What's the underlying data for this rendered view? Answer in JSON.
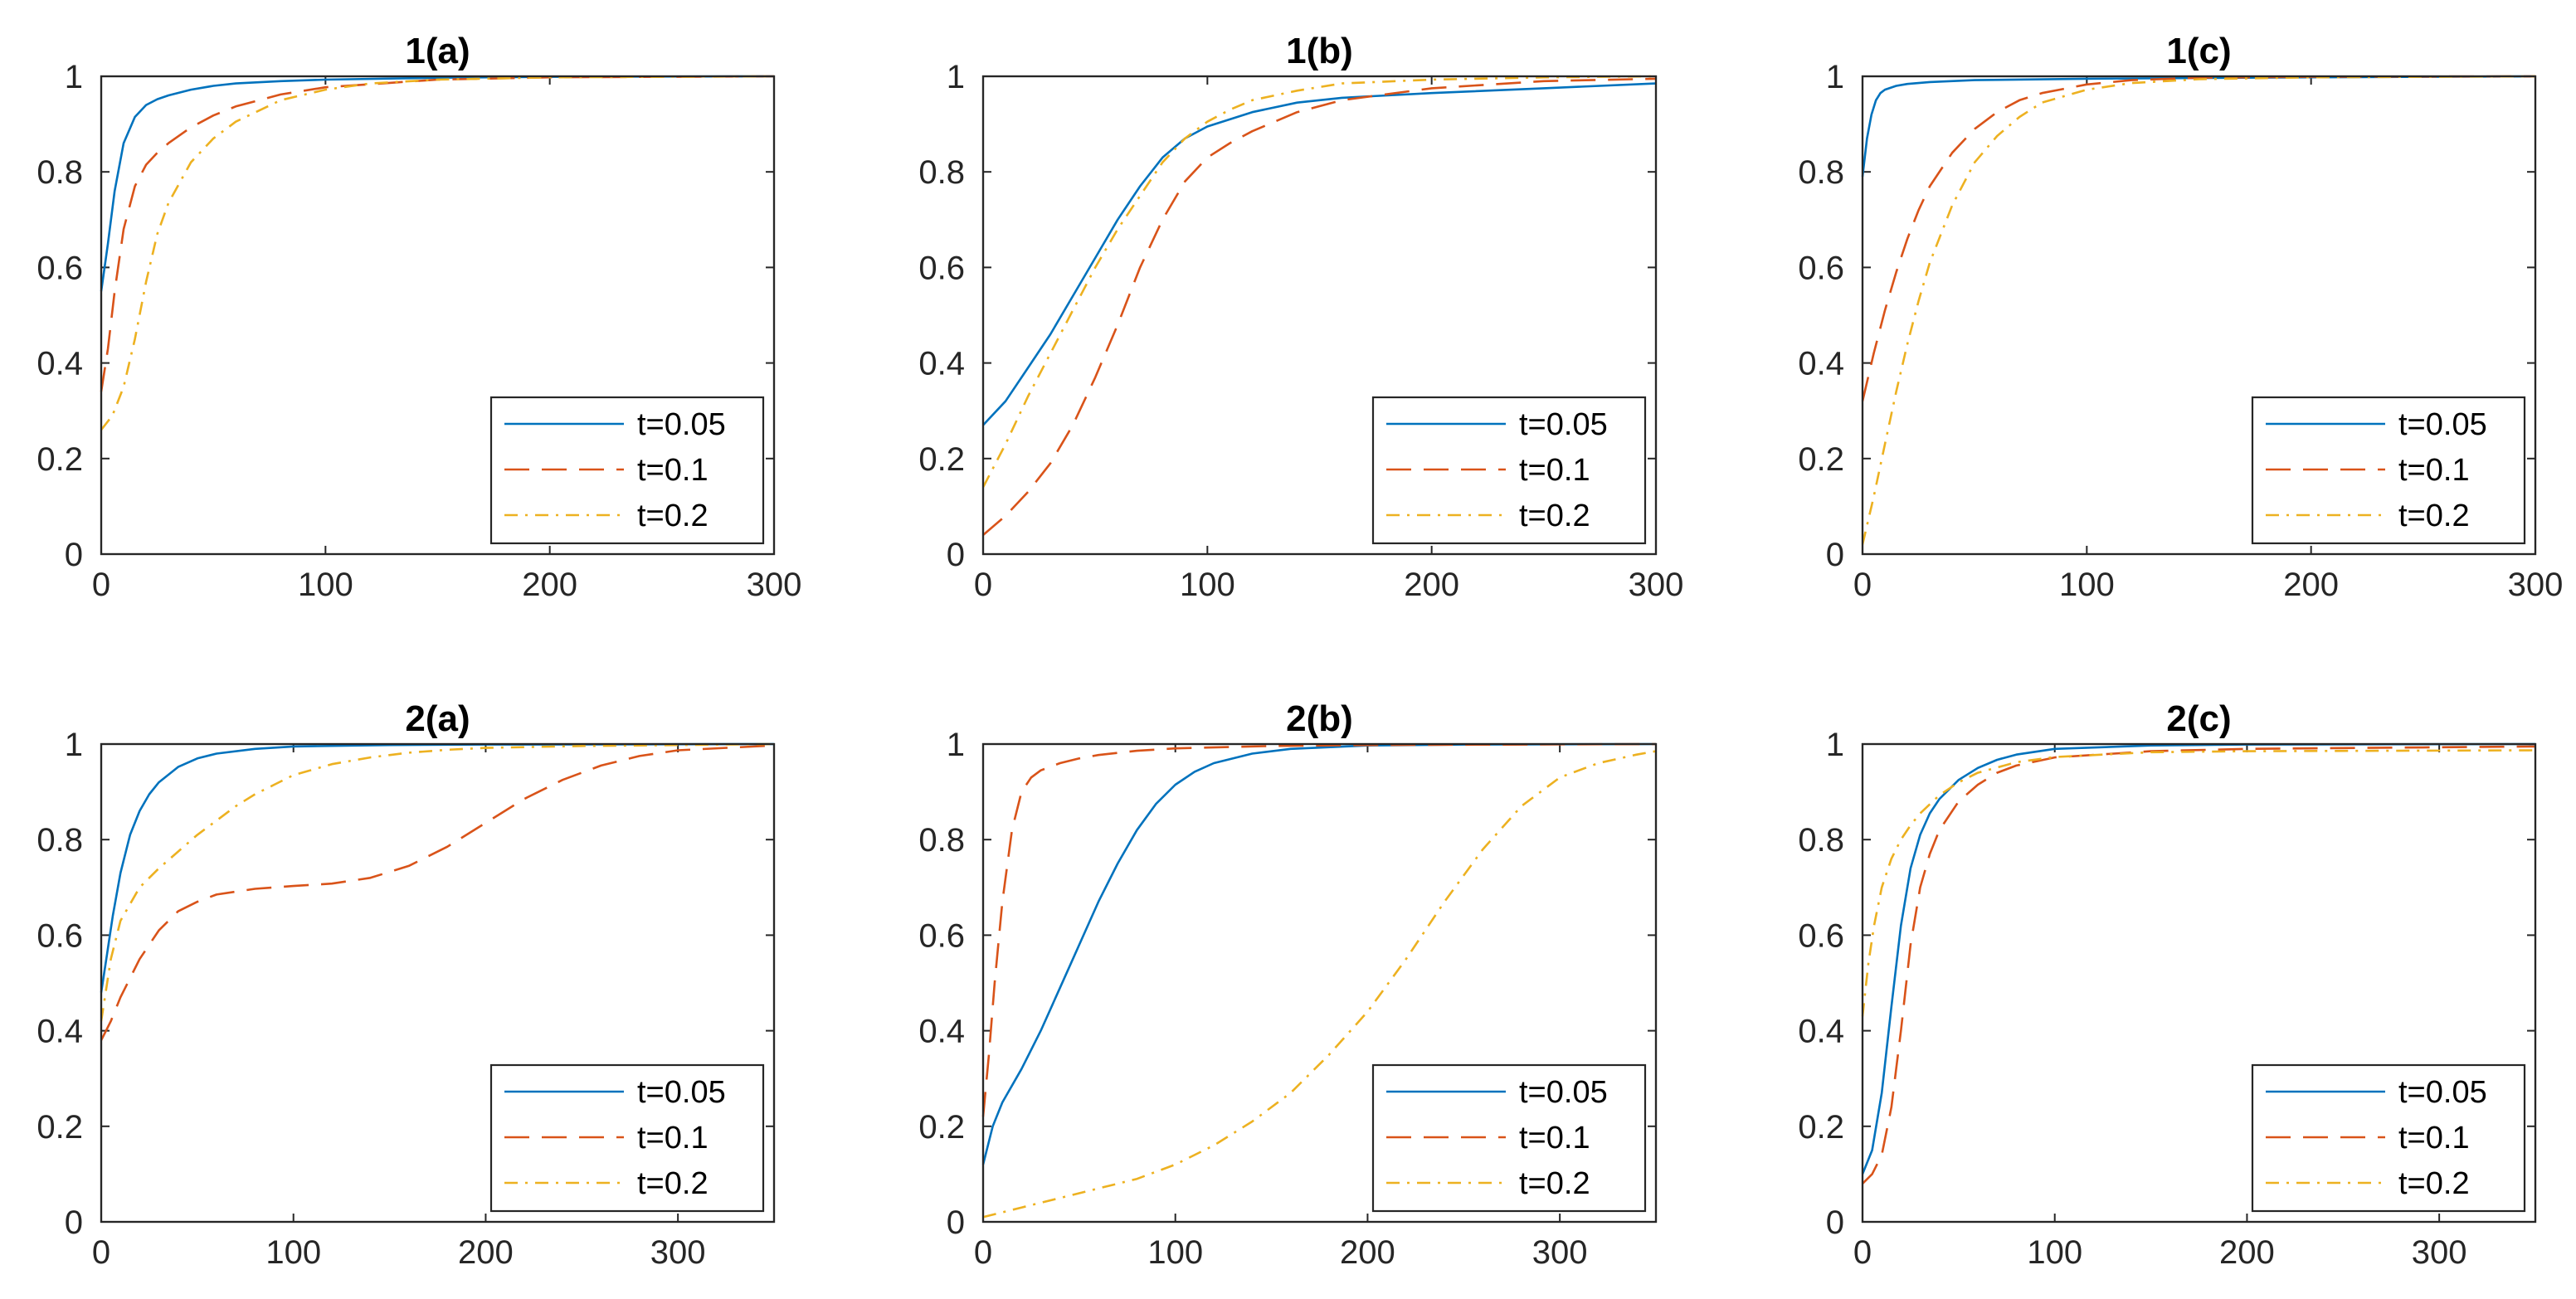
{
  "chart_data": [
    {
      "type": "line",
      "title": "1(a)",
      "xlabel": "",
      "ylabel": "",
      "xlim": [
        0,
        300
      ],
      "ylim": [
        0,
        1
      ],
      "xticks": [
        0,
        100,
        200,
        300
      ],
      "yticks": [
        0,
        0.2,
        0.4,
        0.6,
        0.8,
        1
      ],
      "xtick_labels": [
        "0",
        "100",
        "200",
        "300"
      ],
      "ytick_labels": [
        "0",
        "0.2",
        "0.4",
        "0.6",
        "0.8",
        "1"
      ],
      "grid": false,
      "legend": "bottom-right",
      "series": [
        {
          "name": "t=0.05",
          "color": "#0072BD",
          "dash": "solid",
          "x": [
            0,
            3,
            6,
            10,
            15,
            20,
            25,
            30,
            40,
            50,
            60,
            80,
            100,
            150,
            200,
            300
          ],
          "y": [
            0.55,
            0.65,
            0.76,
            0.86,
            0.915,
            0.94,
            0.952,
            0.96,
            0.972,
            0.98,
            0.985,
            0.99,
            0.993,
            0.997,
            0.999,
            1.0
          ]
        },
        {
          "name": "t=0.1",
          "color": "#D95319",
          "dash": "dashed",
          "x": [
            0,
            3,
            6,
            10,
            15,
            20,
            25,
            30,
            40,
            50,
            60,
            80,
            100,
            150,
            200,
            300
          ],
          "y": [
            0.34,
            0.43,
            0.55,
            0.68,
            0.77,
            0.815,
            0.84,
            0.86,
            0.893,
            0.918,
            0.937,
            0.962,
            0.977,
            0.993,
            0.998,
            1.0
          ]
        },
        {
          "name": "t=0.2",
          "color": "#EDB120",
          "dash": "dashdot",
          "x": [
            0,
            5,
            10,
            15,
            20,
            25,
            30,
            40,
            50,
            60,
            80,
            100,
            120,
            150,
            200,
            300
          ],
          "y": [
            0.26,
            0.29,
            0.35,
            0.45,
            0.57,
            0.67,
            0.735,
            0.82,
            0.87,
            0.905,
            0.95,
            0.972,
            0.985,
            0.993,
            0.998,
            1.0
          ]
        }
      ]
    },
    {
      "type": "line",
      "title": "1(b)",
      "xlabel": "",
      "ylabel": "",
      "xlim": [
        0,
        300
      ],
      "ylim": [
        0,
        1
      ],
      "xticks": [
        0,
        100,
        200,
        300
      ],
      "yticks": [
        0,
        0.2,
        0.4,
        0.6,
        0.8,
        1
      ],
      "xtick_labels": [
        "0",
        "100",
        "200",
        "300"
      ],
      "ytick_labels": [
        "0",
        "0.2",
        "0.4",
        "0.6",
        "0.8",
        "1"
      ],
      "grid": false,
      "legend": "bottom-right",
      "series": [
        {
          "name": "t=0.05",
          "color": "#0072BD",
          "dash": "solid",
          "x": [
            0,
            10,
            20,
            30,
            40,
            50,
            60,
            70,
            80,
            90,
            100,
            120,
            140,
            160,
            200,
            250,
            300
          ],
          "y": [
            0.27,
            0.32,
            0.39,
            0.46,
            0.54,
            0.62,
            0.7,
            0.77,
            0.83,
            0.87,
            0.895,
            0.925,
            0.945,
            0.955,
            0.965,
            0.975,
            0.985
          ]
        },
        {
          "name": "t=0.1",
          "color": "#D95319",
          "dash": "dashed",
          "x": [
            0,
            10,
            20,
            30,
            40,
            50,
            60,
            70,
            80,
            90,
            100,
            110,
            120,
            140,
            160,
            200,
            250,
            300
          ],
          "y": [
            0.04,
            0.08,
            0.13,
            0.19,
            0.27,
            0.37,
            0.48,
            0.6,
            0.7,
            0.78,
            0.83,
            0.86,
            0.885,
            0.925,
            0.95,
            0.975,
            0.99,
            0.995
          ]
        },
        {
          "name": "t=0.2",
          "color": "#EDB120",
          "dash": "dashdot",
          "x": [
            0,
            10,
            20,
            30,
            40,
            50,
            60,
            70,
            80,
            90,
            100,
            110,
            120,
            140,
            160,
            200,
            250,
            300
          ],
          "y": [
            0.14,
            0.23,
            0.33,
            0.42,
            0.51,
            0.6,
            0.68,
            0.75,
            0.82,
            0.87,
            0.905,
            0.93,
            0.95,
            0.97,
            0.985,
            0.993,
            0.998,
            1.0
          ]
        }
      ]
    },
    {
      "type": "line",
      "title": "1(c)",
      "xlabel": "",
      "ylabel": "",
      "xlim": [
        0,
        300
      ],
      "ylim": [
        0,
        1
      ],
      "xticks": [
        0,
        100,
        200,
        300
      ],
      "yticks": [
        0,
        0.2,
        0.4,
        0.6,
        0.8,
        1
      ],
      "xtick_labels": [
        "0",
        "100",
        "200",
        "300"
      ],
      "ytick_labels": [
        "0",
        "0.2",
        "0.4",
        "0.6",
        "0.8",
        "1"
      ],
      "grid": false,
      "legend": "bottom-right",
      "series": [
        {
          "name": "t=0.05",
          "color": "#0072BD",
          "dash": "solid",
          "x": [
            0,
            2,
            4,
            6,
            8,
            10,
            15,
            20,
            30,
            50,
            100,
            200,
            300
          ],
          "y": [
            0.79,
            0.87,
            0.92,
            0.95,
            0.965,
            0.972,
            0.98,
            0.984,
            0.988,
            0.992,
            0.995,
            0.998,
            1.0
          ]
        },
        {
          "name": "t=0.1",
          "color": "#D95319",
          "dash": "dashed",
          "x": [
            0,
            5,
            10,
            15,
            20,
            25,
            30,
            40,
            50,
            60,
            70,
            80,
            100,
            120,
            150,
            200,
            300
          ],
          "y": [
            0.32,
            0.42,
            0.51,
            0.59,
            0.66,
            0.72,
            0.77,
            0.84,
            0.89,
            0.925,
            0.95,
            0.965,
            0.983,
            0.992,
            0.997,
            0.999,
            1.0
          ]
        },
        {
          "name": "t=0.2",
          "color": "#EDB120",
          "dash": "dashdot",
          "x": [
            0,
            5,
            10,
            15,
            20,
            25,
            30,
            40,
            50,
            60,
            70,
            80,
            100,
            120,
            150,
            200,
            300
          ],
          "y": [
            0.02,
            0.12,
            0.23,
            0.34,
            0.44,
            0.53,
            0.61,
            0.73,
            0.82,
            0.875,
            0.915,
            0.945,
            0.972,
            0.986,
            0.994,
            0.998,
            1.0
          ]
        }
      ]
    },
    {
      "type": "line",
      "title": "2(a)",
      "xlabel": "",
      "ylabel": "",
      "xlim": [
        0,
        350
      ],
      "ylim": [
        0,
        1
      ],
      "xticks": [
        0,
        100,
        200,
        300
      ],
      "yticks": [
        0,
        0.2,
        0.4,
        0.6,
        0.8,
        1
      ],
      "xtick_labels": [
        "0",
        "100",
        "200",
        "300"
      ],
      "ytick_labels": [
        "0",
        "0.2",
        "0.4",
        "0.6",
        "0.8",
        "1"
      ],
      "grid": false,
      "legend": "bottom-right",
      "series": [
        {
          "name": "t=0.05",
          "color": "#0072BD",
          "dash": "solid",
          "x": [
            0,
            3,
            6,
            10,
            15,
            20,
            25,
            30,
            40,
            50,
            60,
            80,
            100,
            150,
            200,
            350
          ],
          "y": [
            0.48,
            0.56,
            0.64,
            0.73,
            0.81,
            0.86,
            0.895,
            0.92,
            0.952,
            0.97,
            0.98,
            0.99,
            0.995,
            0.998,
            0.999,
            1.0
          ]
        },
        {
          "name": "t=0.1",
          "color": "#D95319",
          "dash": "dashed",
          "x": [
            0,
            5,
            10,
            20,
            30,
            40,
            50,
            60,
            80,
            100,
            120,
            140,
            160,
            180,
            200,
            220,
            240,
            260,
            280,
            300,
            350
          ],
          "y": [
            0.38,
            0.42,
            0.47,
            0.55,
            0.61,
            0.65,
            0.67,
            0.685,
            0.697,
            0.703,
            0.708,
            0.72,
            0.745,
            0.785,
            0.835,
            0.885,
            0.925,
            0.955,
            0.975,
            0.987,
            0.997
          ]
        },
        {
          "name": "t=0.2",
          "color": "#EDB120",
          "dash": "dashdot",
          "x": [
            0,
            5,
            10,
            20,
            30,
            40,
            50,
            60,
            70,
            80,
            90,
            100,
            120,
            140,
            160,
            180,
            200,
            250,
            300,
            350
          ],
          "y": [
            0.42,
            0.55,
            0.63,
            0.7,
            0.74,
            0.775,
            0.81,
            0.84,
            0.87,
            0.895,
            0.915,
            0.935,
            0.958,
            0.972,
            0.982,
            0.988,
            0.992,
            0.996,
            0.998,
            1.0
          ]
        }
      ]
    },
    {
      "type": "line",
      "title": "2(b)",
      "xlabel": "",
      "ylabel": "",
      "xlim": [
        0,
        350
      ],
      "ylim": [
        0,
        1
      ],
      "xticks": [
        0,
        100,
        200,
        300
      ],
      "yticks": [
        0,
        0.2,
        0.4,
        0.6,
        0.8,
        1
      ],
      "xtick_labels": [
        "0",
        "100",
        "200",
        "300"
      ],
      "ytick_labels": [
        "0",
        "0.2",
        "0.4",
        "0.6",
        "0.8",
        "1"
      ],
      "grid": false,
      "legend": "bottom-right",
      "series": [
        {
          "name": "t=0.05",
          "color": "#0072BD",
          "dash": "solid",
          "x": [
            0,
            5,
            10,
            20,
            30,
            40,
            50,
            60,
            70,
            80,
            90,
            100,
            110,
            120,
            140,
            160,
            200,
            250,
            350
          ],
          "y": [
            0.12,
            0.2,
            0.25,
            0.32,
            0.4,
            0.49,
            0.58,
            0.67,
            0.75,
            0.82,
            0.875,
            0.915,
            0.942,
            0.96,
            0.98,
            0.99,
            0.997,
            0.999,
            1.0
          ]
        },
        {
          "name": "t=0.1",
          "color": "#D95319",
          "dash": "dashed",
          "x": [
            0,
            3,
            6,
            10,
            15,
            20,
            25,
            30,
            40,
            50,
            60,
            80,
            100,
            150,
            200,
            350
          ],
          "y": [
            0.22,
            0.35,
            0.5,
            0.67,
            0.82,
            0.9,
            0.93,
            0.945,
            0.96,
            0.97,
            0.977,
            0.986,
            0.991,
            0.996,
            0.998,
            1.0
          ]
        },
        {
          "name": "t=0.2",
          "color": "#EDB120",
          "dash": "dashdot",
          "x": [
            0,
            10,
            20,
            40,
            60,
            80,
            100,
            120,
            140,
            160,
            180,
            200,
            220,
            240,
            260,
            280,
            300,
            320,
            340,
            350
          ],
          "y": [
            0.01,
            0.02,
            0.03,
            0.05,
            0.07,
            0.09,
            0.12,
            0.16,
            0.21,
            0.27,
            0.35,
            0.44,
            0.55,
            0.67,
            0.78,
            0.87,
            0.93,
            0.96,
            0.978,
            0.985
          ]
        }
      ]
    },
    {
      "type": "line",
      "title": "2(c)",
      "xlabel": "",
      "ylabel": "",
      "xlim": [
        0,
        350
      ],
      "ylim": [
        0,
        1
      ],
      "xticks": [
        0,
        100,
        200,
        300
      ],
      "yticks": [
        0,
        0.2,
        0.4,
        0.6,
        0.8,
        1
      ],
      "xtick_labels": [
        "0",
        "100",
        "200",
        "300"
      ],
      "ytick_labels": [
        "0",
        "0.2",
        "0.4",
        "0.6",
        "0.8",
        "1"
      ],
      "grid": false,
      "legend": "bottom-right",
      "series": [
        {
          "name": "t=0.05",
          "color": "#0072BD",
          "dash": "solid",
          "x": [
            0,
            5,
            10,
            15,
            20,
            25,
            30,
            35,
            40,
            50,
            60,
            70,
            80,
            100,
            150,
            200,
            350
          ],
          "y": [
            0.1,
            0.15,
            0.27,
            0.45,
            0.62,
            0.74,
            0.81,
            0.855,
            0.885,
            0.925,
            0.95,
            0.967,
            0.978,
            0.99,
            0.997,
            0.999,
            1.0
          ]
        },
        {
          "name": "t=0.1",
          "color": "#D95319",
          "dash": "dashed",
          "x": [
            0,
            5,
            10,
            15,
            20,
            25,
            30,
            35,
            40,
            50,
            60,
            70,
            80,
            100,
            150,
            200,
            350
          ],
          "y": [
            0.08,
            0.1,
            0.14,
            0.24,
            0.4,
            0.58,
            0.7,
            0.77,
            0.82,
            0.88,
            0.915,
            0.94,
            0.955,
            0.972,
            0.985,
            0.99,
            0.995
          ]
        },
        {
          "name": "t=0.2",
          "color": "#EDB120",
          "dash": "dashdot",
          "x": [
            0,
            3,
            6,
            10,
            15,
            20,
            25,
            30,
            40,
            50,
            60,
            80,
            100,
            150,
            200,
            350
          ],
          "y": [
            0.43,
            0.54,
            0.62,
            0.7,
            0.76,
            0.8,
            0.83,
            0.855,
            0.893,
            0.92,
            0.94,
            0.962,
            0.973,
            0.983,
            0.985,
            0.987
          ]
        }
      ]
    }
  ]
}
